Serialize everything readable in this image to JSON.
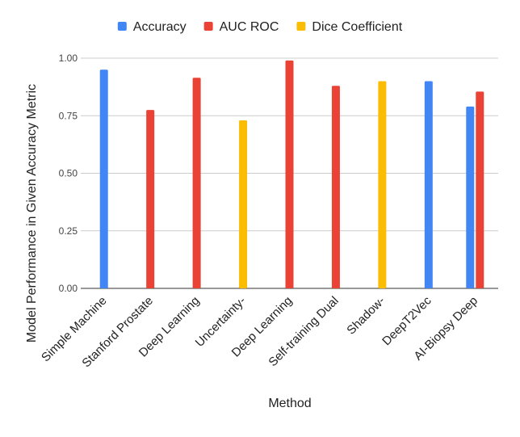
{
  "chart_data": {
    "type": "bar",
    "title": "",
    "xlabel": "Method",
    "ylabel": "Model Performance in Given Accuracy Metric",
    "ylim": [
      0,
      1.0
    ],
    "yticks": [
      "0.00",
      "0.25",
      "0.50",
      "0.75",
      "1.00"
    ],
    "grid": true,
    "legend_position": "top",
    "categories": [
      "Simple Machine",
      "Stanford Prostate",
      "Deep Learning",
      "Uncertainty-",
      "Deep Learning",
      "Self-training Dual",
      "Shadow-",
      "DeepT2Vec",
      "AI-Biopsy Deep"
    ],
    "series": [
      {
        "name": "Accuracy",
        "color": "#4285f4",
        "values": [
          0.95,
          null,
          null,
          null,
          null,
          null,
          null,
          0.9,
          0.79
        ]
      },
      {
        "name": "AUC ROC",
        "color": "#ea4335",
        "values": [
          null,
          0.775,
          0.915,
          null,
          0.99,
          0.88,
          null,
          null,
          0.855
        ]
      },
      {
        "name": "Dice Coefficient",
        "color": "#fbbc04",
        "values": [
          null,
          null,
          null,
          0.73,
          null,
          null,
          0.9,
          null,
          null
        ]
      }
    ]
  }
}
